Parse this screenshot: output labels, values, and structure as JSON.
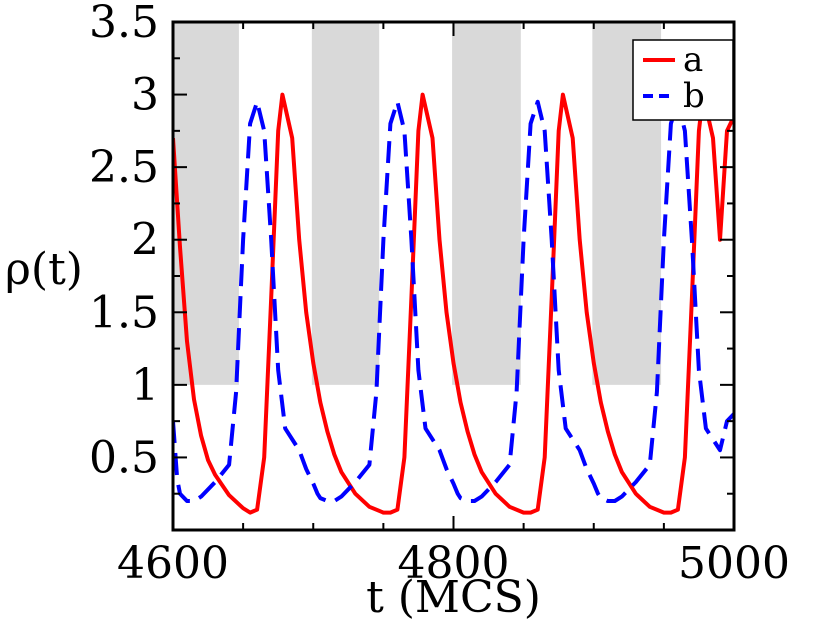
{
  "chart_data": {
    "type": "line",
    "title": "",
    "xlabel": "t (MCS)",
    "ylabel": "ρ(t)",
    "xlim": [
      4600,
      5000
    ],
    "ylim": [
      0,
      3.5
    ],
    "xticks": [
      4600,
      4800,
      5000
    ],
    "xtick_labels": [
      "4600",
      "4800",
      "5000"
    ],
    "yticks": [
      0.5,
      1,
      1.5,
      2,
      2.5,
      3,
      3.5
    ],
    "ytick_labels": [
      "0.5",
      "1",
      "1.5",
      "2",
      "2.5",
      "3",
      "3.5"
    ],
    "grid": false,
    "legend_position": "top-right",
    "shaded_regions": [
      {
        "x": [
          4600,
          4647
        ],
        "y": [
          1,
          3.5
        ]
      },
      {
        "x": [
          4699,
          4747
        ],
        "y": [
          1,
          3.5
        ]
      },
      {
        "x": [
          4799,
          4848
        ],
        "y": [
          1,
          3.5
        ]
      },
      {
        "x": [
          4899,
          4948
        ],
        "y": [
          1,
          3.5
        ]
      }
    ],
    "series": [
      {
        "name": "a",
        "color": "#ff0000",
        "style": "solid",
        "x": [
          4600,
          4605,
          4610,
          4615,
          4620,
          4625,
          4630,
          4640,
          4650,
          4655,
          4660,
          4665,
          4670,
          4675,
          4678,
          4685,
          4690,
          4695,
          4700,
          4705,
          4710,
          4715,
          4720,
          4730,
          4740,
          4750,
          4755,
          4760,
          4765,
          4770,
          4775,
          4778,
          4785,
          4790,
          4795,
          4800,
          4805,
          4810,
          4815,
          4820,
          4830,
          4840,
          4850,
          4855,
          4860,
          4865,
          4870,
          4875,
          4878,
          4885,
          4890,
          4895,
          4900,
          4905,
          4910,
          4915,
          4920,
          4930,
          4940,
          4950,
          4955,
          4960,
          4965,
          4970,
          4975,
          4978,
          4985,
          4990,
          4995,
          5000
        ],
        "y": [
          2.7,
          1.95,
          1.3,
          0.9,
          0.65,
          0.48,
          0.38,
          0.24,
          0.15,
          0.12,
          0.14,
          0.5,
          1.6,
          2.75,
          3.0,
          2.7,
          2.0,
          1.5,
          1.15,
          0.88,
          0.68,
          0.52,
          0.4,
          0.25,
          0.16,
          0.12,
          0.12,
          0.14,
          0.5,
          1.6,
          2.75,
          3.0,
          2.7,
          2.0,
          1.5,
          1.15,
          0.88,
          0.68,
          0.52,
          0.4,
          0.25,
          0.16,
          0.12,
          0.12,
          0.14,
          0.5,
          1.6,
          2.75,
          3.0,
          2.7,
          2.0,
          1.5,
          1.15,
          0.88,
          0.68,
          0.52,
          0.4,
          0.25,
          0.16,
          0.12,
          0.12,
          0.14,
          0.5,
          1.6,
          2.75,
          3.0,
          2.7,
          2.0,
          2.75,
          2.85
        ]
      },
      {
        "name": "b",
        "color": "#0000ff",
        "style": "dashed",
        "x": [
          4600,
          4603,
          4605,
          4610,
          4615,
          4620,
          4630,
          4640,
          4645,
          4650,
          4655,
          4660,
          4665,
          4670,
          4675,
          4680,
          4690,
          4695,
          4700,
          4703,
          4705,
          4710,
          4715,
          4720,
          4730,
          4740,
          4745,
          4750,
          4755,
          4760,
          4765,
          4770,
          4775,
          4780,
          4790,
          4795,
          4800,
          4803,
          4805,
          4810,
          4815,
          4820,
          4830,
          4840,
          4845,
          4850,
          4855,
          4860,
          4865,
          4870,
          4875,
          4880,
          4890,
          4895,
          4900,
          4903,
          4905,
          4910,
          4915,
          4920,
          4930,
          4940,
          4945,
          4950,
          4955,
          4960,
          4965,
          4970,
          4975,
          4980,
          4990,
          4995,
          5000
        ],
        "y": [
          0.75,
          0.35,
          0.25,
          0.2,
          0.2,
          0.23,
          0.33,
          0.45,
          0.95,
          2.0,
          2.8,
          2.95,
          2.75,
          2.0,
          1.1,
          0.7,
          0.55,
          0.42,
          0.32,
          0.25,
          0.22,
          0.2,
          0.2,
          0.23,
          0.33,
          0.45,
          0.95,
          2.0,
          2.8,
          2.95,
          2.75,
          2.0,
          1.1,
          0.7,
          0.55,
          0.42,
          0.32,
          0.25,
          0.22,
          0.2,
          0.2,
          0.23,
          0.33,
          0.45,
          0.95,
          2.0,
          2.8,
          2.95,
          2.75,
          2.0,
          1.1,
          0.7,
          0.55,
          0.42,
          0.32,
          0.25,
          0.22,
          0.2,
          0.2,
          0.23,
          0.33,
          0.45,
          0.95,
          2.0,
          2.8,
          2.95,
          2.75,
          2.0,
          1.1,
          0.7,
          0.55,
          0.75,
          0.8
        ]
      }
    ]
  }
}
